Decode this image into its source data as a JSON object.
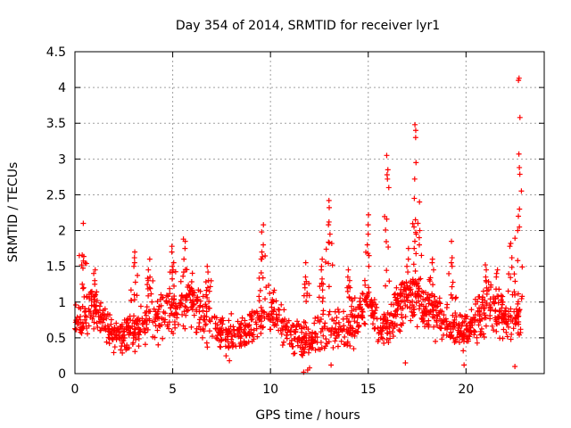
{
  "chart_data": {
    "type": "scatter",
    "title": "Day 354 of 2014, SRMTID for receiver lyr1",
    "xlabel": "GPS time / hours",
    "ylabel": "SRMTID / TECUs",
    "xlim": [
      0,
      24
    ],
    "ylim": [
      0,
      4.5
    ],
    "xticks": [
      0,
      5,
      10,
      15,
      20
    ],
    "xtick_labels": [
      "0",
      "5",
      "10",
      "15",
      "20"
    ],
    "yticks": [
      0,
      0.5,
      1,
      1.5,
      2,
      2.5,
      3,
      3.5,
      4,
      4.5
    ],
    "ytick_labels": [
      "0",
      "0.5",
      "1",
      "1.5",
      "2",
      "2.5",
      "3",
      "3.5",
      "4",
      "4.5"
    ],
    "grid": true,
    "marker": "+",
    "color": "#ff0000",
    "baseline_segments": [
      {
        "x": [
          0,
          1,
          2,
          3,
          4,
          5,
          6,
          7,
          8,
          9,
          10,
          11,
          12,
          13,
          14,
          15,
          16,
          17,
          18,
          19,
          20,
          21,
          22,
          22.8
        ],
        "y": [
          0.65,
          0.9,
          0.55,
          0.6,
          0.75,
          0.9,
          1.05,
          0.6,
          0.55,
          0.65,
          0.9,
          0.6,
          0.45,
          0.7,
          0.6,
          0.95,
          0.55,
          1.1,
          0.9,
          0.7,
          0.55,
          0.95,
          0.75,
          0.8
        ],
        "spread": [
          0.35,
          0.45,
          0.3,
          0.4,
          0.4,
          0.5,
          0.55,
          0.4,
          0.35,
          0.35,
          0.55,
          0.4,
          0.35,
          0.45,
          0.4,
          0.5,
          0.35,
          0.55,
          0.45,
          0.4,
          0.35,
          0.5,
          0.45,
          0.45
        ],
        "count": 1400
      }
    ],
    "peak_series": [
      {
        "x": 0.4,
        "y": [
          2.1,
          1.52,
          1.25,
          1.2
        ]
      },
      {
        "x": 1.0,
        "y": [
          1.45,
          1.4,
          1.3,
          1.25
        ]
      },
      {
        "x": 3.0,
        "y": [
          1.7,
          1.62,
          1.55,
          1.5
        ]
      },
      {
        "x": 3.8,
        "y": [
          1.6,
          1.45,
          1.3,
          1.2
        ]
      },
      {
        "x": 5.0,
        "y": [
          1.78,
          1.7,
          1.55,
          1.5
        ]
      },
      {
        "x": 5.6,
        "y": [
          1.88,
          1.85,
          1.75,
          1.6
        ]
      },
      {
        "x": 6.8,
        "y": [
          1.5,
          1.42,
          1.3
        ]
      },
      {
        "x": 9.6,
        "y": [
          2.08,
          1.98,
          1.8,
          1.7,
          1.6
        ]
      },
      {
        "x": 11.8,
        "y": [
          1.55,
          1.35,
          1.2
        ]
      },
      {
        "x": 12.6,
        "y": [
          1.6,
          1.5,
          1.45
        ]
      },
      {
        "x": 13.0,
        "y": [
          2.42,
          2.32,
          2.12,
          2.08,
          1.95
        ]
      },
      {
        "x": 14.0,
        "y": [
          1.45,
          1.35,
          1.3
        ]
      },
      {
        "x": 15.0,
        "y": [
          2.22,
          2.08,
          1.95,
          1.8,
          1.65,
          1.5
        ]
      },
      {
        "x": 16.0,
        "y": [
          3.05,
          2.85,
          2.78,
          2.72,
          2.6
        ]
      },
      {
        "x": 16.5,
        "y": [
          1.2,
          1.1
        ]
      },
      {
        "x": 17.0,
        "y": [
          1.75,
          1.6,
          1.5,
          1.42
        ]
      },
      {
        "x": 17.4,
        "y": [
          3.48,
          3.4,
          3.3,
          2.95,
          2.72,
          2.45,
          2.15,
          2.05,
          1.95,
          1.85,
          1.75
        ]
      },
      {
        "x": 17.6,
        "y": [
          2.4,
          2.0,
          1.9,
          1.8
        ]
      },
      {
        "x": 18.3,
        "y": [
          1.6,
          1.55,
          1.45
        ]
      },
      {
        "x": 19.3,
        "y": [
          1.85,
          1.62,
          1.55,
          1.5
        ]
      },
      {
        "x": 21.0,
        "y": [
          1.52,
          1.45,
          1.35,
          1.3
        ]
      },
      {
        "x": 21.6,
        "y": [
          1.45,
          1.4,
          1.35
        ]
      },
      {
        "x": 22.3,
        "y": [
          1.82,
          1.78,
          1.62
        ]
      },
      {
        "x": 22.7,
        "y": [
          4.13,
          4.1,
          3.58,
          3.07,
          2.88,
          2.3,
          2.2,
          2.05,
          2.0,
          1.58
        ]
      }
    ],
    "low_outliers": [
      {
        "x": 11.7,
        "y": 0.02
      },
      {
        "x": 11.9,
        "y": 0.05
      },
      {
        "x": 12.0,
        "y": 0.08
      },
      {
        "x": 22.5,
        "y": 0.1
      },
      {
        "x": 19.9,
        "y": 0.12
      },
      {
        "x": 7.9,
        "y": 0.18
      },
      {
        "x": 16.9,
        "y": 0.15
      },
      {
        "x": 13.1,
        "y": 0.12
      }
    ]
  }
}
